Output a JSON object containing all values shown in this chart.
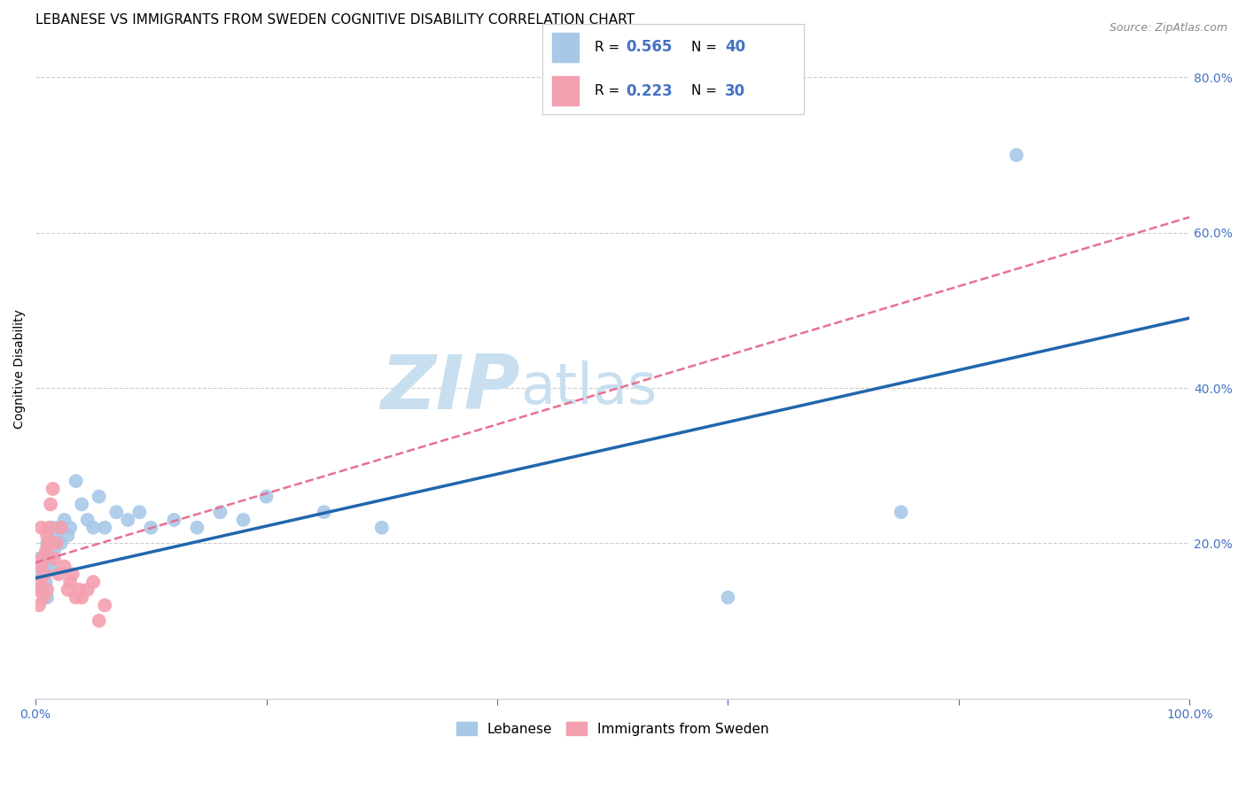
{
  "title": "LEBANESE VS IMMIGRANTS FROM SWEDEN COGNITIVE DISABILITY CORRELATION CHART",
  "source": "Source: ZipAtlas.com",
  "xlabel": "",
  "ylabel": "Cognitive Disability",
  "xlim": [
    0.0,
    1.0
  ],
  "ylim": [
    0.0,
    0.85
  ],
  "xticks": [
    0.0,
    0.2,
    0.4,
    0.6,
    0.8,
    1.0
  ],
  "xticklabels": [
    "0.0%",
    "",
    "",
    "",
    "",
    "100.0%"
  ],
  "yticks": [
    0.2,
    0.4,
    0.6,
    0.8
  ],
  "yticklabels": [
    "20.0%",
    "40.0%",
    "60.0%",
    "80.0%"
  ],
  "legend_label1": "Lebanese",
  "legend_label2": "Immigrants from Sweden",
  "r1": 0.565,
  "n1": 40,
  "r2": 0.223,
  "n2": 30,
  "color1": "#a8c8e8",
  "color2": "#f4a0b0",
  "line_color1": "#2166ac",
  "line_color2": "#e87090",
  "background_color": "#ffffff",
  "grid_color": "#cccccc",
  "title_fontsize": 11,
  "axis_label_fontsize": 10,
  "tick_label_color": "#4472c4",
  "scatter1_x": [
    0.003,
    0.005,
    0.006,
    0.007,
    0.008,
    0.009,
    0.01,
    0.01,
    0.011,
    0.012,
    0.013,
    0.014,
    0.015,
    0.016,
    0.018,
    0.02,
    0.022,
    0.025,
    0.028,
    0.03,
    0.035,
    0.04,
    0.045,
    0.05,
    0.055,
    0.06,
    0.07,
    0.08,
    0.09,
    0.1,
    0.12,
    0.14,
    0.16,
    0.18,
    0.2,
    0.25,
    0.3,
    0.6,
    0.75,
    0.85
  ],
  "scatter1_y": [
    0.18,
    0.16,
    0.14,
    0.16,
    0.17,
    0.15,
    0.2,
    0.13,
    0.19,
    0.18,
    0.17,
    0.2,
    0.22,
    0.19,
    0.21,
    0.22,
    0.2,
    0.23,
    0.21,
    0.22,
    0.28,
    0.25,
    0.23,
    0.22,
    0.26,
    0.22,
    0.24,
    0.23,
    0.24,
    0.22,
    0.23,
    0.22,
    0.24,
    0.23,
    0.26,
    0.24,
    0.22,
    0.13,
    0.24,
    0.7
  ],
  "scatter2_x": [
    0.002,
    0.003,
    0.004,
    0.005,
    0.005,
    0.006,
    0.007,
    0.008,
    0.009,
    0.01,
    0.01,
    0.011,
    0.012,
    0.013,
    0.015,
    0.016,
    0.018,
    0.02,
    0.022,
    0.025,
    0.028,
    0.03,
    0.032,
    0.035,
    0.038,
    0.04,
    0.045,
    0.05,
    0.055,
    0.06
  ],
  "scatter2_y": [
    0.14,
    0.12,
    0.15,
    0.17,
    0.22,
    0.18,
    0.13,
    0.16,
    0.19,
    0.21,
    0.14,
    0.2,
    0.22,
    0.25,
    0.27,
    0.18,
    0.2,
    0.16,
    0.22,
    0.17,
    0.14,
    0.15,
    0.16,
    0.13,
    0.14,
    0.13,
    0.14,
    0.15,
    0.1,
    0.12
  ],
  "watermark_part1": "ZIP",
  "watermark_part2": "atlas",
  "watermark_color1": "#c8dff0",
  "watermark_color2": "#c8dff0",
  "line1_x0": 0.0,
  "line1_y0": 0.155,
  "line1_x1": 1.0,
  "line1_y1": 0.49,
  "line2_x0": 0.0,
  "line2_y0": 0.175,
  "line2_x1": 1.0,
  "line2_y1": 0.62
}
